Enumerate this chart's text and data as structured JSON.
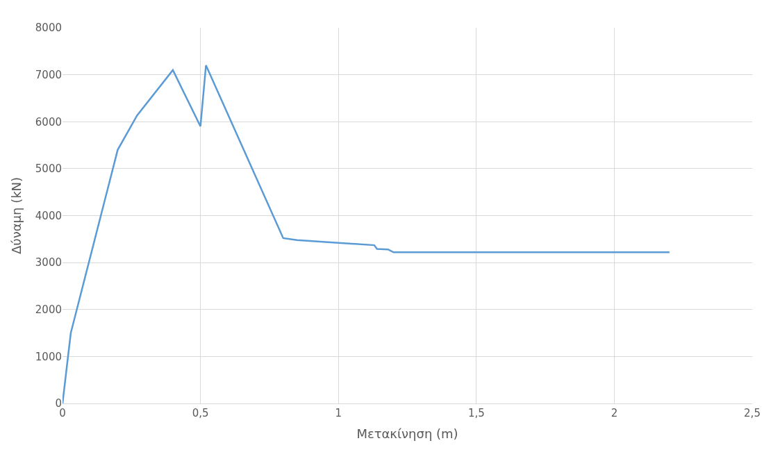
{
  "chart_data": {
    "type": "line",
    "xlabel": "Μετακίνηση (m)",
    "ylabel": "Δύναμη (kN)",
    "x": [
      0,
      0.03,
      0.2,
      0.27,
      0.4,
      0.5,
      0.52,
      0.8,
      0.85,
      1.0,
      1.13,
      1.14,
      1.18,
      1.2,
      2.2
    ],
    "series": [
      {
        "color": "#5b9bd5",
        "values": [
          0,
          1500,
          5400,
          6130,
          7100,
          5900,
          7200,
          3520,
          3480,
          3420,
          3370,
          3290,
          3280,
          3220,
          3220
        ]
      }
    ],
    "xlim": [
      0,
      2.5
    ],
    "xticks": [
      0,
      {
        "value": 0.5,
        "label": "0,5"
      },
      1,
      {
        "value": 1.5,
        "label": "1,5"
      },
      2,
      {
        "value": 2.5,
        "label": "2,5"
      }
    ],
    "ylim": [
      0,
      8000
    ],
    "yticks": [
      0,
      1000,
      2000,
      3000,
      4000,
      5000,
      6000,
      7000,
      8000
    ],
    "grid": true,
    "legend": false,
    "marker": "none",
    "line_style": "solid"
  }
}
